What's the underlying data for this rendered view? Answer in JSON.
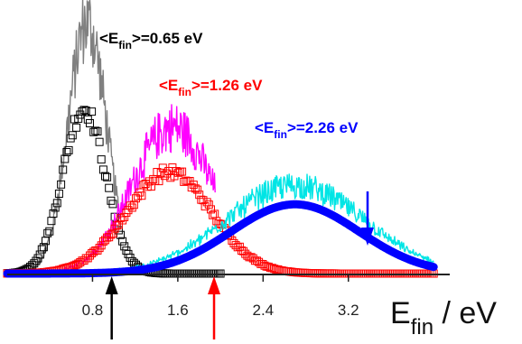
{
  "chart_data": {
    "type": "line",
    "xlabel": {
      "main": "E",
      "sub": "fin",
      "rest": " / eV"
    },
    "xlim": [
      0.0,
      4.1
    ],
    "ylim": [
      0,
      1.0
    ],
    "x_ticks": [
      0.8,
      1.6,
      2.4,
      3.2
    ],
    "x_tick_labels": [
      "0.8",
      "1.6",
      "2.4",
      "3.2"
    ],
    "grid": false,
    "series": [
      {
        "color": "#808080",
        "style": "noisy-line",
        "x_range": [
          0.0,
          1.05
        ],
        "peak_x": 0.75,
        "peak_y": 0.94,
        "width": 0.18,
        "noise": 0.14
      },
      {
        "color": "#000000",
        "style": "square-markers",
        "x_range": [
          0.0,
          2.0
        ],
        "peak_x": 0.72,
        "peak_y": 0.62,
        "width": 0.2
      },
      {
        "color": "#ff00ff",
        "style": "noisy-line",
        "x_range": [
          0.0,
          1.95
        ],
        "peak_x": 1.55,
        "peak_y": 0.55,
        "width": 0.38,
        "noise": 0.16
      },
      {
        "color": "#ff0000",
        "style": "square-markers",
        "x_range": [
          0.0,
          4.0
        ],
        "peak_x": 1.52,
        "peak_y": 0.38,
        "width": 0.4
      },
      {
        "color": "#00e5e5",
        "style": "noisy-line",
        "x_range": [
          0.0,
          4.0
        ],
        "peak_x": 2.7,
        "peak_y": 0.33,
        "width": 0.65,
        "noise": 0.14
      },
      {
        "color": "#0000ff",
        "style": "thick-band",
        "x_range": [
          0.0,
          4.0
        ],
        "peak_x": 2.7,
        "peak_y": 0.26,
        "width": 0.6
      }
    ],
    "annotations": [
      {
        "color": "#000000",
        "main": "<E",
        "sub": "fin",
        "rest": ">=0.65 eV"
      },
      {
        "color": "#ff0000",
        "main": "<E",
        "sub": "fin",
        "rest": ">=1.26 eV"
      },
      {
        "color": "#0000ff",
        "main": "<E",
        "sub": "fin",
        "rest": ">=2.26 eV"
      }
    ],
    "arrows": [
      {
        "color": "#000000",
        "x": 0.98,
        "direction": "up",
        "row": "below-axis"
      },
      {
        "color": "#ff0000",
        "x": 1.94,
        "direction": "up",
        "row": "below-axis"
      },
      {
        "color": "#0000ff",
        "x": 3.38,
        "direction": "down",
        "row": "above-curve"
      }
    ]
  }
}
